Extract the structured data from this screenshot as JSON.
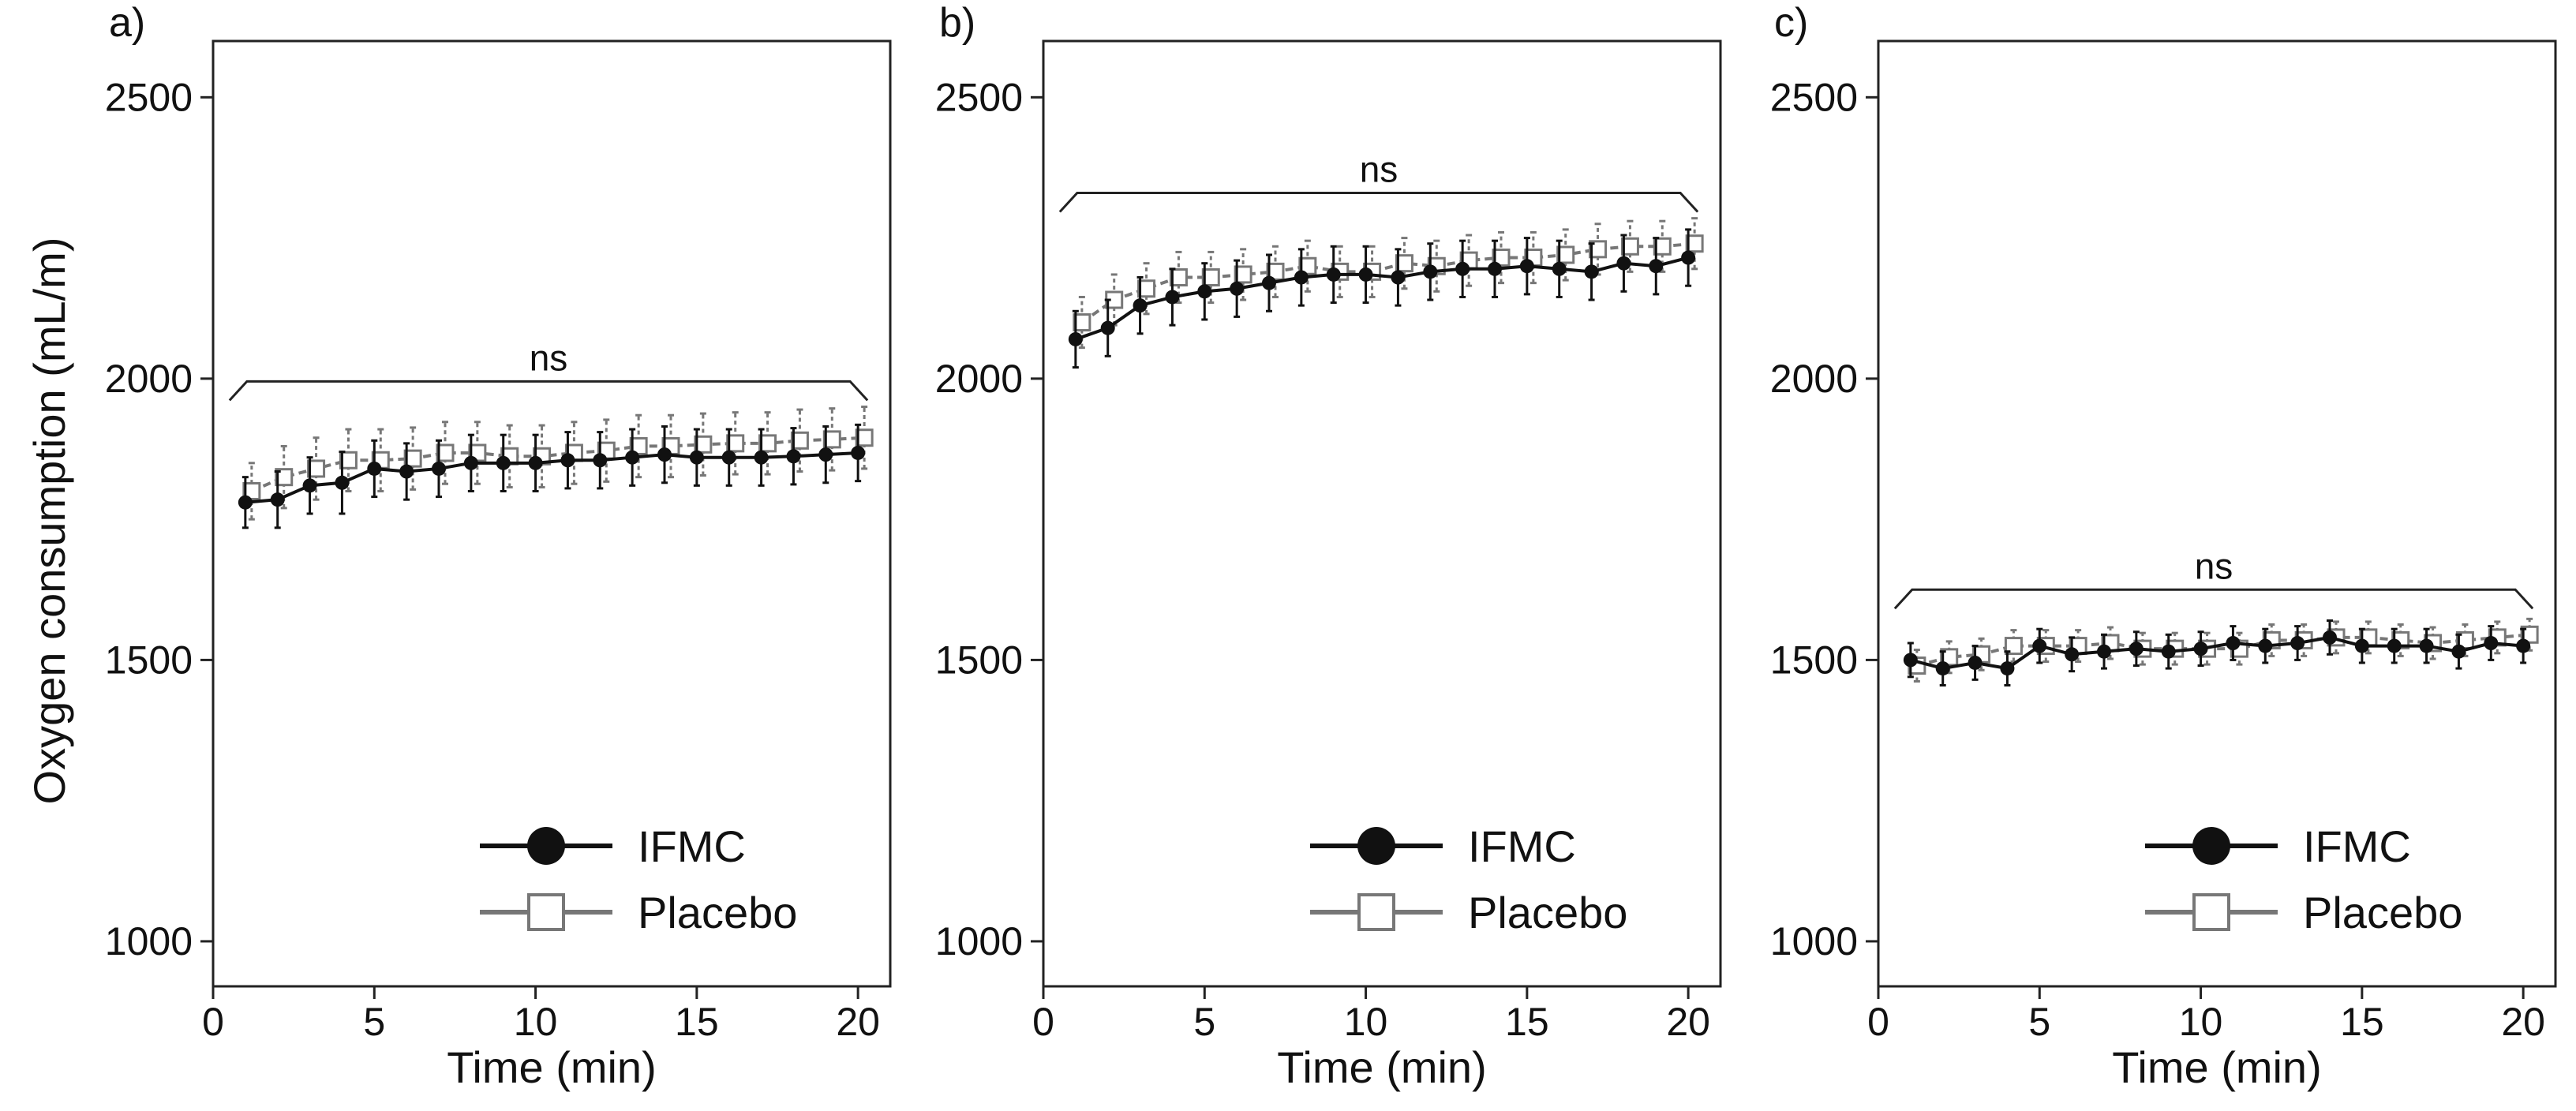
{
  "ylabel": "Oxygen consumption (mL/m)",
  "chart_data": [
    {
      "type": "line",
      "panel_label": "a)",
      "xlabel": "Time (min)",
      "ylabel": "Oxygen consumption (mL/m)",
      "xlim": [
        0,
        21
      ],
      "ylim": [
        920,
        2600
      ],
      "xticks": [
        0,
        5,
        10,
        15,
        20
      ],
      "yticks": [
        1000,
        1500,
        2000,
        2500
      ],
      "annotation": {
        "text": "ns",
        "x_start": 1,
        "x_end": 20,
        "y": 1995
      },
      "x": [
        1,
        2,
        3,
        4,
        5,
        6,
        7,
        8,
        9,
        10,
        11,
        12,
        13,
        14,
        15,
        16,
        17,
        18,
        19,
        20
      ],
      "series": [
        {
          "name": "IFMC",
          "color": "#111111",
          "marker": "filled-circle",
          "values": [
            1780,
            1785,
            1810,
            1815,
            1840,
            1835,
            1840,
            1850,
            1850,
            1850,
            1855,
            1855,
            1860,
            1865,
            1860,
            1860,
            1860,
            1862,
            1865,
            1868
          ],
          "errors": [
            45,
            50,
            50,
            55,
            50,
            50,
            50,
            50,
            50,
            50,
            50,
            50,
            50,
            50,
            50,
            50,
            50,
            50,
            50,
            50
          ]
        },
        {
          "name": "Placebo",
          "color": "#777777",
          "marker": "open-square",
          "values": [
            1800,
            1825,
            1840,
            1855,
            1855,
            1858,
            1868,
            1868,
            1862,
            1862,
            1868,
            1872,
            1880,
            1880,
            1883,
            1885,
            1885,
            1890,
            1892,
            1895
          ],
          "errors": [
            50,
            55,
            55,
            55,
            55,
            55,
            55,
            55,
            55,
            55,
            55,
            55,
            55,
            55,
            55,
            55,
            55,
            55,
            55,
            55
          ]
        }
      ],
      "legend": [
        "IFMC",
        "Placebo"
      ],
      "legend_position": "bottom-right"
    },
    {
      "type": "line",
      "panel_label": "b)",
      "xlabel": "Time (min)",
      "ylabel": "",
      "xlim": [
        0,
        21
      ],
      "ylim": [
        920,
        2600
      ],
      "xticks": [
        0,
        5,
        10,
        15,
        20
      ],
      "yticks": [
        1000,
        1500,
        2000,
        2500
      ],
      "annotation": {
        "text": "ns",
        "x_start": 1,
        "x_end": 20,
        "y": 2330
      },
      "x": [
        1,
        2,
        3,
        4,
        5,
        6,
        7,
        8,
        9,
        10,
        11,
        12,
        13,
        14,
        15,
        16,
        17,
        18,
        19,
        20
      ],
      "series": [
        {
          "name": "IFMC",
          "color": "#111111",
          "marker": "filled-circle",
          "values": [
            2070,
            2090,
            2130,
            2145,
            2155,
            2160,
            2170,
            2180,
            2185,
            2185,
            2180,
            2190,
            2195,
            2195,
            2200,
            2195,
            2190,
            2205,
            2200,
            2215
          ],
          "errors": [
            50,
            50,
            50,
            50,
            50,
            50,
            50,
            50,
            50,
            50,
            50,
            50,
            50,
            50,
            50,
            50,
            50,
            50,
            50,
            50
          ]
        },
        {
          "name": "Placebo",
          "color": "#777777",
          "marker": "open-square",
          "values": [
            2100,
            2140,
            2160,
            2180,
            2180,
            2185,
            2190,
            2200,
            2190,
            2190,
            2205,
            2200,
            2210,
            2215,
            2215,
            2220,
            2230,
            2235,
            2235,
            2240
          ],
          "errors": [
            45,
            45,
            45,
            45,
            45,
            45,
            45,
            45,
            45,
            45,
            45,
            45,
            45,
            45,
            45,
            45,
            45,
            45,
            45,
            45
          ]
        }
      ],
      "legend": [
        "IFMC",
        "Placebo"
      ],
      "legend_position": "bottom-right"
    },
    {
      "type": "line",
      "panel_label": "c)",
      "xlabel": "Time (min)",
      "ylabel": "",
      "xlim": [
        0,
        21
      ],
      "ylim": [
        920,
        2600
      ],
      "xticks": [
        0,
        5,
        10,
        15,
        20
      ],
      "yticks": [
        1000,
        1500,
        2000,
        2500
      ],
      "annotation": {
        "text": "ns",
        "x_start": 1,
        "x_end": 20,
        "y": 1625
      },
      "x": [
        1,
        2,
        3,
        4,
        5,
        6,
        7,
        8,
        9,
        10,
        11,
        12,
        13,
        14,
        15,
        16,
        17,
        18,
        19,
        20
      ],
      "series": [
        {
          "name": "IFMC",
          "color": "#111111",
          "marker": "filled-circle",
          "values": [
            1500,
            1485,
            1495,
            1485,
            1525,
            1510,
            1515,
            1520,
            1515,
            1520,
            1530,
            1525,
            1530,
            1540,
            1525,
            1525,
            1525,
            1515,
            1530,
            1525
          ],
          "errors": [
            30,
            30,
            30,
            30,
            30,
            30,
            30,
            30,
            30,
            30,
            30,
            30,
            30,
            30,
            30,
            30,
            30,
            30,
            30,
            30
          ]
        },
        {
          "name": "Placebo",
          "color": "#777777",
          "marker": "open-square",
          "values": [
            1490,
            1505,
            1510,
            1525,
            1525,
            1525,
            1530,
            1520,
            1520,
            1520,
            1520,
            1535,
            1535,
            1540,
            1540,
            1535,
            1530,
            1535,
            1540,
            1545
          ],
          "errors": [
            28,
            28,
            28,
            28,
            28,
            28,
            28,
            28,
            28,
            28,
            28,
            28,
            28,
            28,
            28,
            28,
            28,
            28,
            28,
            28
          ]
        }
      ],
      "legend": [
        "IFMC",
        "Placebo"
      ],
      "legend_position": "bottom-right"
    }
  ]
}
